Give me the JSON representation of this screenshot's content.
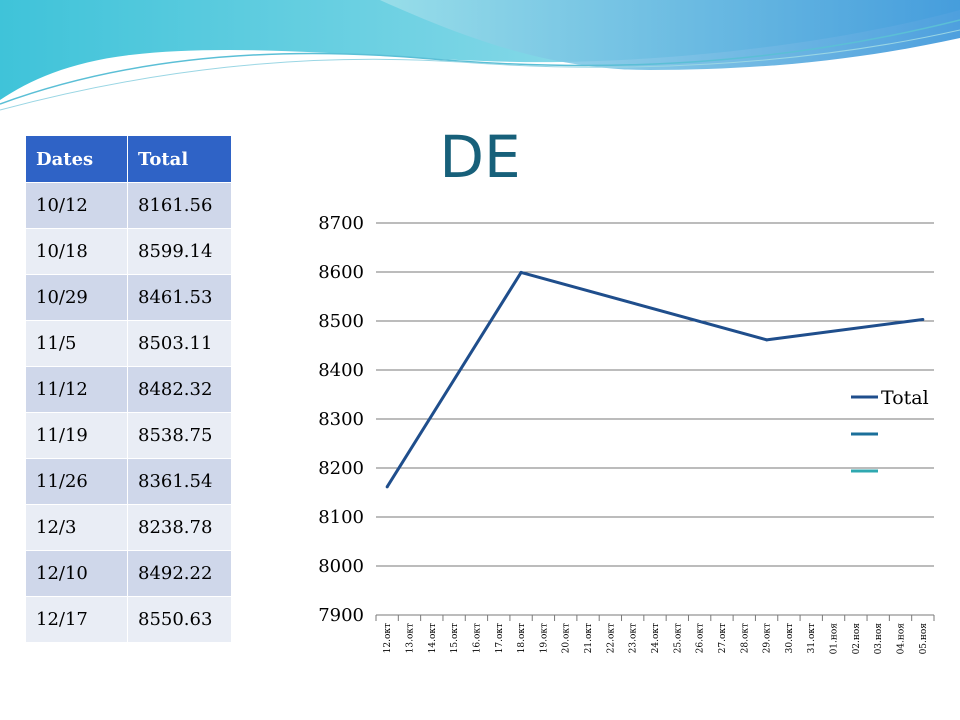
{
  "slide": {
    "title": "DE"
  },
  "table": {
    "headers": [
      "Dates",
      "Total"
    ],
    "rows": [
      [
        "10/12",
        "8161.56"
      ],
      [
        "10/18",
        "8599.14"
      ],
      [
        "10/29",
        "8461.53"
      ],
      [
        "11/5",
        "8503.11"
      ],
      [
        "11/12",
        "8482.32"
      ],
      [
        "11/19",
        "8538.75"
      ],
      [
        "11/26",
        "8361.54"
      ],
      [
        "12/3",
        "8238.78"
      ],
      [
        "12/10",
        "8492.22"
      ],
      [
        "12/17",
        "8550.63"
      ]
    ]
  },
  "chart_data": {
    "type": "line",
    "x": [
      "12.окт",
      "13.окт",
      "14.окт",
      "15.окт",
      "16.окт",
      "17.окт",
      "18.окт",
      "19.окт",
      "20.окт",
      "21.окт",
      "22.окт",
      "23.окт",
      "24.окт",
      "25.окт",
      "26.окт",
      "27.окт",
      "28.окт",
      "29.окт",
      "30.окт",
      "31.окт",
      "01.ноя",
      "02.ноя",
      "03.ноя",
      "04.ноя",
      "05.ноя"
    ],
    "series": [
      {
        "name": "Total",
        "color": "#1f4e8c",
        "points": [
          [
            "12.окт",
            8161.56
          ],
          [
            "18.окт",
            8599.14
          ],
          [
            "29.окт",
            8461.53
          ],
          [
            "05.ноя",
            8503.11
          ]
        ]
      }
    ],
    "legend_extra_colors": [
      "#1b6f9a",
      "#2fa8b0"
    ],
    "y_ticks": [
      7900,
      8000,
      8100,
      8200,
      8300,
      8400,
      8500,
      8600,
      8700
    ],
    "ylim": [
      7900,
      8700
    ],
    "grid": true,
    "legend_position": "right",
    "title": "",
    "xlabel": "",
    "ylabel": ""
  }
}
